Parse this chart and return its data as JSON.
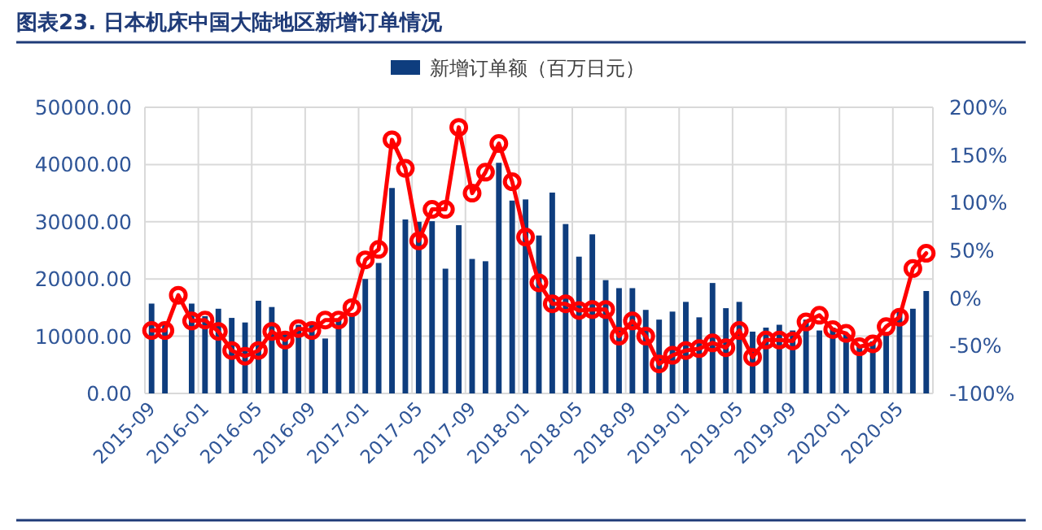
{
  "chart_data": {
    "type": "bar",
    "title": "图表23.  日本机床中国大陆地区新增订单情况",
    "categories": [
      "2015-09",
      null,
      null,
      null,
      "2016-01",
      null,
      null,
      null,
      "2016-05",
      null,
      null,
      null,
      "2016-09",
      null,
      null,
      null,
      "2017-01",
      null,
      null,
      null,
      "2017-05",
      null,
      null,
      null,
      "2017-09",
      null,
      null,
      null,
      "2018-01",
      null,
      null,
      null,
      "2018-05",
      null,
      null,
      null,
      "2018-09",
      null,
      null,
      null,
      "2019-01",
      null,
      null,
      null,
      "2019-05",
      null,
      null,
      null,
      "2019-09",
      null,
      null,
      null,
      "2020-01",
      null,
      null,
      null,
      "2020-05",
      null,
      null
    ],
    "series": [
      {
        "name": "新增订单额（百万日元）",
        "color": "#0e3d7e",
        "values": [
          15700,
          12500,
          null,
          15700,
          13500,
          14800,
          13200,
          12400,
          16200,
          15100,
          10500,
          12000,
          12000,
          9600,
          12900,
          13800,
          20000,
          22800,
          35900,
          30400,
          30000,
          30100,
          21800,
          29400,
          23500,
          23100,
          40300,
          33700,
          33900,
          27600,
          35100,
          29600,
          23900,
          27800,
          19800,
          18400,
          18400,
          14600,
          12900,
          14300,
          16000,
          13300,
          19300,
          14900,
          16000,
          10800,
          11500,
          12000,
          11000,
          12900,
          11000,
          11500,
          10500,
          8200,
          9100,
          10100,
          14300,
          14800,
          17900
        ]
      },
      {
        "type": "line",
        "axis": "y2",
        "color": "#ff0000",
        "marker": "circle",
        "values": [
          -34,
          -34,
          3,
          -24,
          -23,
          -35,
          -55,
          -61,
          -55,
          -35,
          -44,
          -32,
          -34,
          -23,
          -23,
          -10,
          40,
          51,
          166,
          136,
          60,
          93,
          93,
          179,
          110,
          132,
          162,
          122,
          64,
          16,
          -6,
          -6,
          -13,
          -12,
          -12,
          -40,
          -24,
          -40,
          -69,
          -60,
          -55,
          -53,
          -47,
          -52,
          -34,
          -62,
          -44,
          -44,
          -45,
          -25,
          -18,
          -33,
          -37,
          -51,
          -48,
          -30,
          -20,
          31,
          47
        ]
      }
    ],
    "ylim": [
      0,
      50000
    ],
    "yticks": [
      {
        "value": 0,
        "label": "0.00"
      },
      {
        "value": 10000,
        "label": "10000.00"
      },
      {
        "value": 20000,
        "label": "20000.00"
      },
      {
        "value": 30000,
        "label": "30000.00"
      },
      {
        "value": 40000,
        "label": "40000.00"
      },
      {
        "value": 50000,
        "label": "50000.00"
      }
    ],
    "y2lim": [
      -100,
      200
    ],
    "y2ticks": [
      {
        "value": -100,
        "label": "-100%"
      },
      {
        "value": -50,
        "label": "-50%"
      },
      {
        "value": 0,
        "label": "0%"
      },
      {
        "value": 50,
        "label": "50%"
      },
      {
        "value": 100,
        "label": "100%"
      },
      {
        "value": 150,
        "label": "150%"
      },
      {
        "value": 200,
        "label": "200%"
      }
    ],
    "grid": true,
    "legend": "top"
  }
}
